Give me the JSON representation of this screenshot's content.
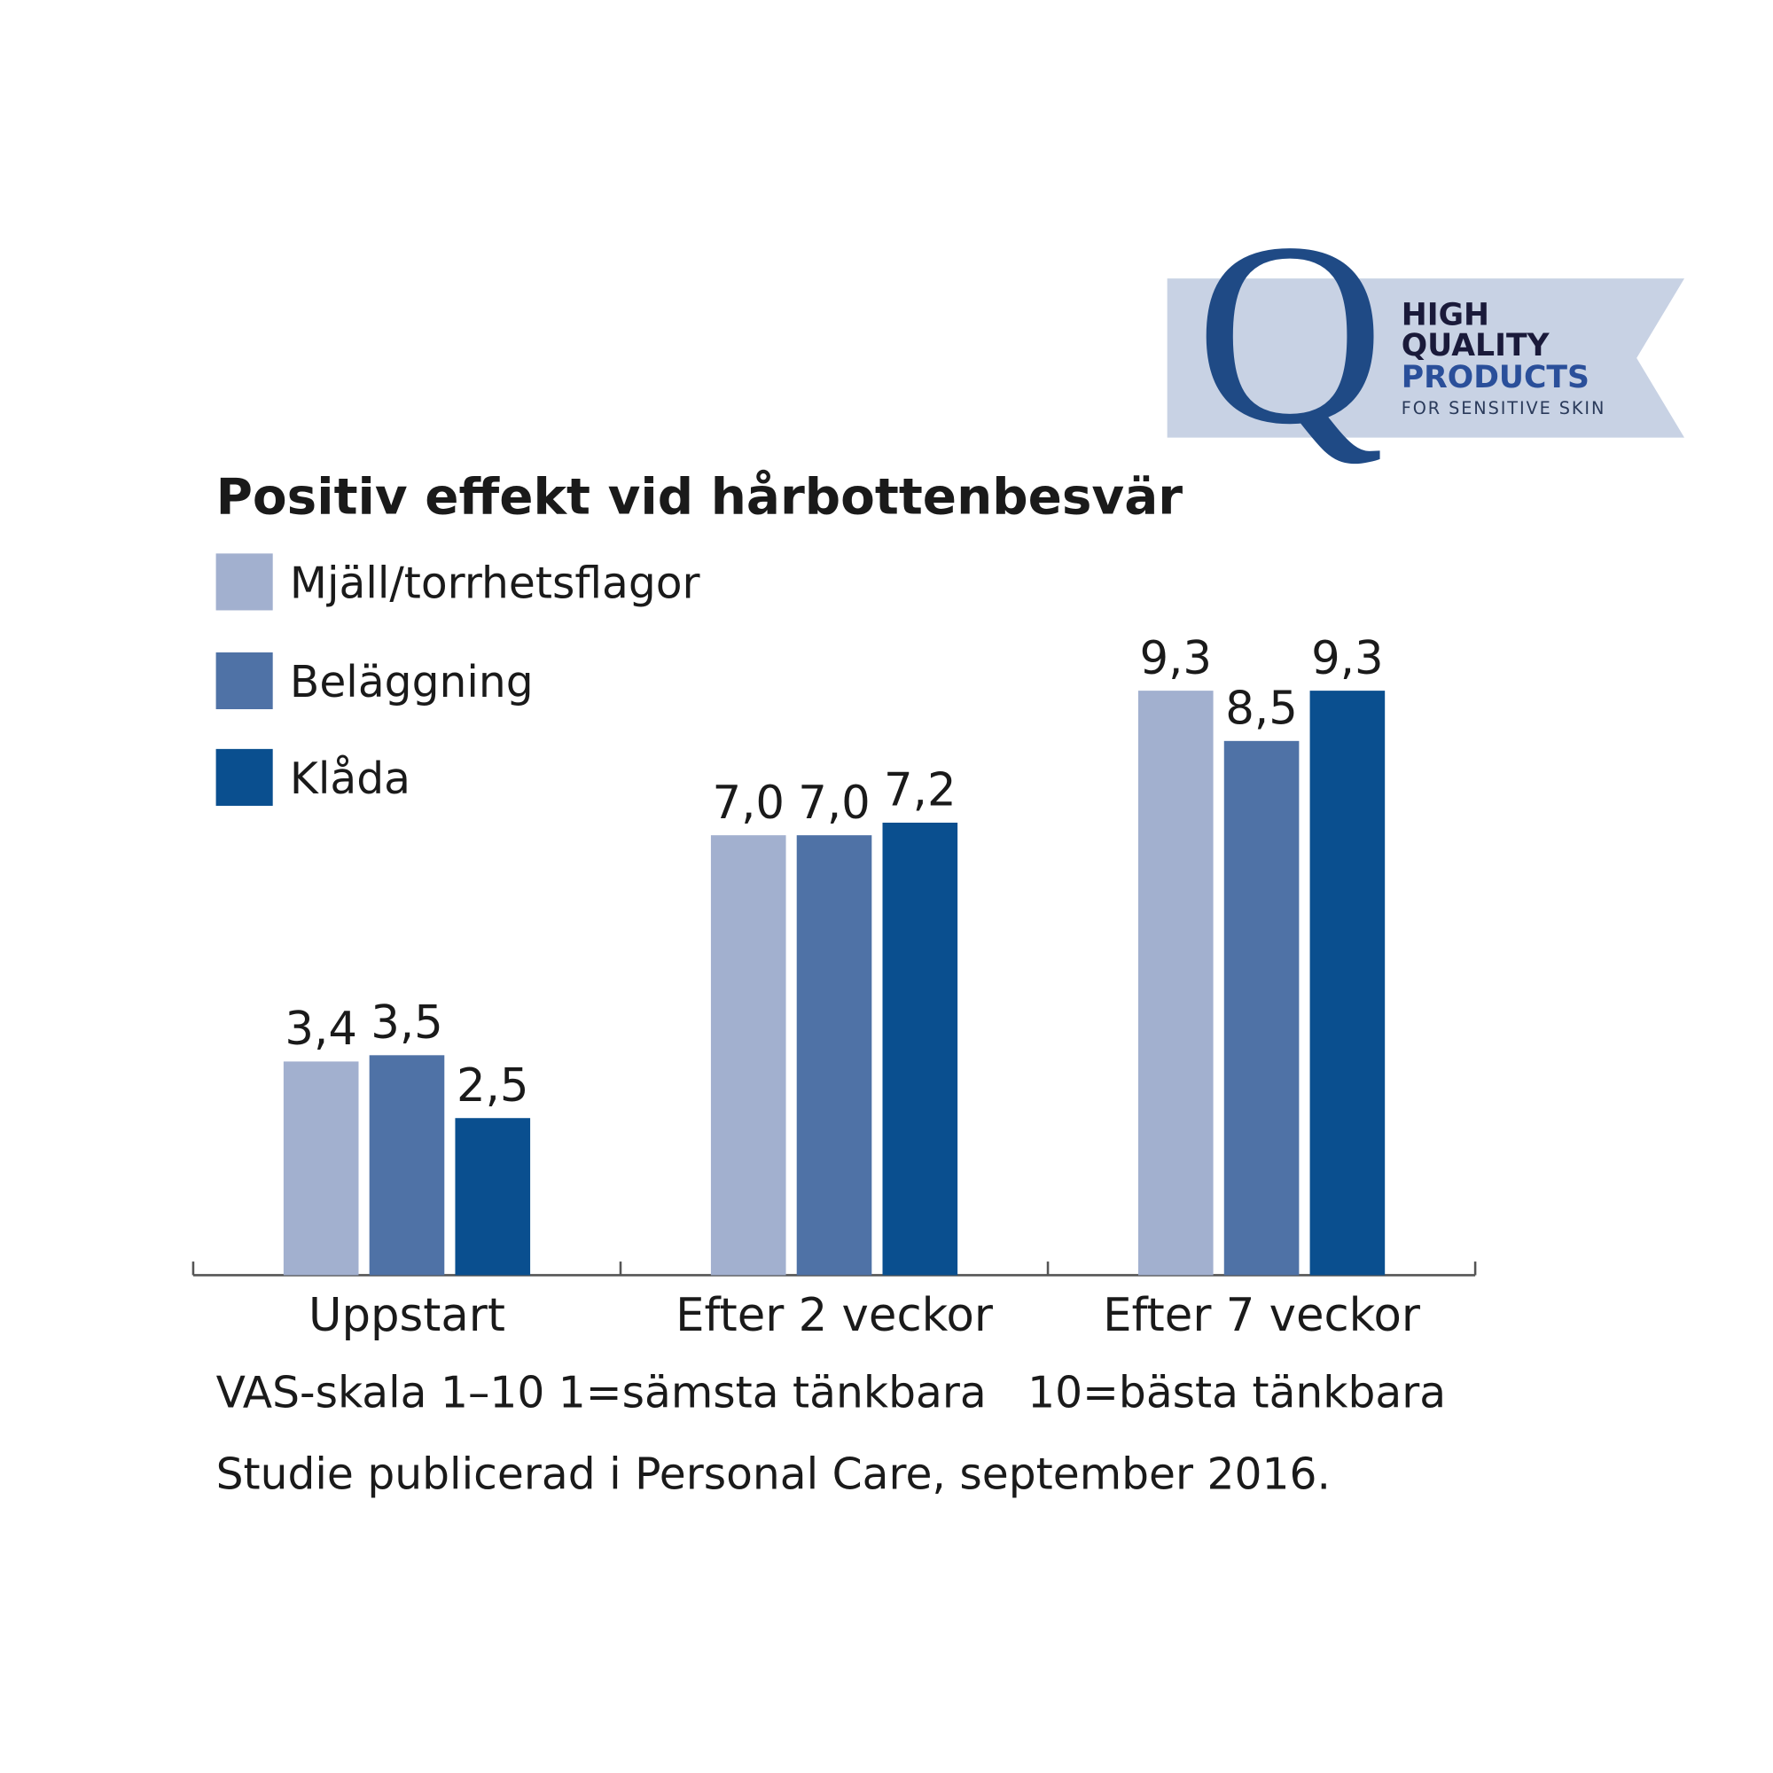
{
  "chart_data": {
    "type": "bar",
    "title": "Positiv effekt vid hårbottenbesvär",
    "categories": [
      "Uppstart",
      "Efter 2 veckor",
      "Efter 7 veckor"
    ],
    "series": [
      {
        "name": "Mjäll/torrhetsflagor",
        "color": "#a2b0cf",
        "values": [
          3.4,
          7.0,
          9.3
        ],
        "value_labels": [
          "3,4",
          "7,0",
          "9,3"
        ]
      },
      {
        "name": "Beläggning",
        "color": "#4f72a6",
        "values": [
          3.5,
          7.0,
          8.5
        ],
        "value_labels": [
          "3,5",
          "7,0",
          "8,5"
        ]
      },
      {
        "name": "Klåda",
        "color": "#0a4f8f",
        "values": [
          2.5,
          7.2,
          9.3
        ],
        "value_labels": [
          "2,5",
          "7,2",
          "9,3"
        ]
      }
    ],
    "ylim": [
      0,
      10
    ],
    "notes": [
      "VAS-skala 1–10 1=sämsta tänkbara   10=bästa tänkbara",
      "Studie publicerad i Personal Care, september 2016."
    ]
  },
  "logo": {
    "letter": "Q",
    "lines": [
      "HIGH",
      "QUALITY",
      "PRODUCTS"
    ],
    "tagline": "FOR SENSITIVE SKIN"
  }
}
